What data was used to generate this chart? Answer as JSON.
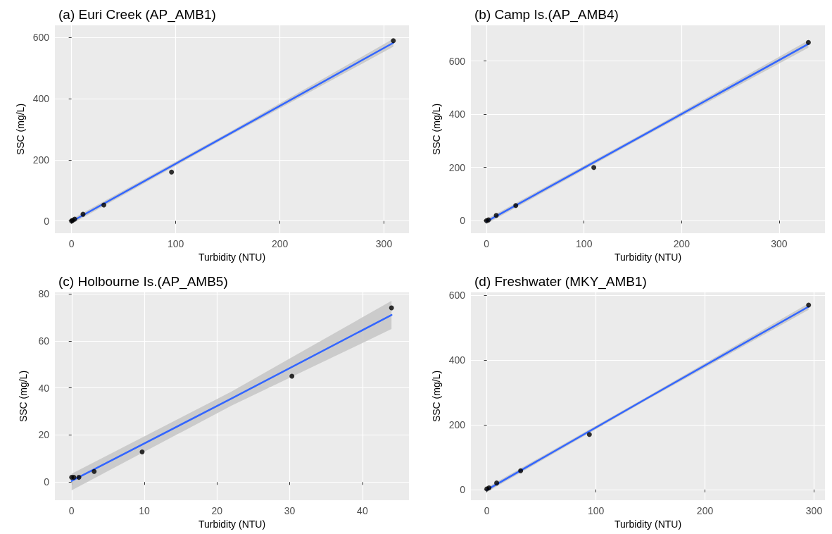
{
  "chart_data": [
    {
      "type": "scatter",
      "title": "(a) Euri Creek (AP_AMB1)",
      "xlabel": "Turbidity (NTU)",
      "ylabel": "SSC (mg/L)",
      "xlim": [
        -16,
        324
      ],
      "ylim": [
        -40,
        640
      ],
      "xticks": [
        0,
        100,
        200,
        300
      ],
      "yticks": [
        0,
        200,
        400,
        600
      ],
      "grid": true,
      "marker": "circle",
      "series": [
        {
          "color": "#000000",
          "x": [
            0,
            1,
            3,
            11,
            31,
            96,
            309
          ],
          "values": [
            0,
            2,
            6,
            22,
            52,
            160,
            590
          ]
        },
        {
          "type": "line",
          "color": "#3366ff",
          "line_style": "solid",
          "marker": "none",
          "x": [
            0,
            150,
            309
          ],
          "values": [
            -2,
            282,
            583
          ],
          "lower": [
            -10,
            276,
            570
          ],
          "upper": [
            6,
            288,
            596
          ]
        }
      ]
    },
    {
      "type": "scatter",
      "title": "(b) Camp Is.(AP_AMB4)",
      "xlabel": "Turbidity (NTU)",
      "ylabel": "SSC (mg/L)",
      "xlim": [
        -16,
        347
      ],
      "ylim": [
        -47,
        734
      ],
      "xticks": [
        0,
        100,
        200,
        300
      ],
      "yticks": [
        0,
        200,
        400,
        600
      ],
      "grid": true,
      "marker": "circle",
      "series": [
        {
          "color": "#000000",
          "x": [
            0,
            2,
            10,
            30,
            110,
            330
          ],
          "values": [
            0,
            3,
            20,
            57,
            200,
            670
          ]
        },
        {
          "type": "line",
          "color": "#3366ff",
          "line_style": "solid",
          "marker": "none",
          "x": [
            0,
            165,
            330
          ],
          "values": [
            -3,
            330,
            664
          ],
          "lower": [
            -12,
            323,
            650
          ],
          "upper": [
            6,
            337,
            678
          ]
        }
      ]
    },
    {
      "type": "scatter",
      "title": "(c) Holbourne Is.(AP_AMB5)",
      "xlabel": "Turbidity (NTU)",
      "ylabel": "SSC (mg/L)",
      "xlim": [
        -2.3,
        46.4
      ],
      "ylim": [
        -7.7,
        80.6
      ],
      "xticks": [
        0,
        10,
        20,
        30,
        40
      ],
      "yticks": [
        0,
        20,
        40,
        60,
        80
      ],
      "grid": true,
      "marker": "circle",
      "series": [
        {
          "color": "#000000",
          "x": [
            0,
            0.3,
            1,
            3.1,
            9.7,
            30.3,
            44
          ],
          "values": [
            2,
            2,
            2,
            4.5,
            12.8,
            45,
            74
          ]
        },
        {
          "type": "line",
          "color": "#3366ff",
          "line_style": "solid",
          "marker": "none",
          "x": [
            0,
            22,
            44
          ],
          "values": [
            0.5,
            35.5,
            71
          ],
          "lower": [
            -3.5,
            32.5,
            65
          ],
          "upper": [
            3.5,
            38.5,
            77
          ]
        }
      ]
    },
    {
      "type": "scatter",
      "title": "(d) Freshwater (MKY_AMB1)",
      "xlabel": "Turbidity (NTU)",
      "ylabel": "SSC (mg/L)",
      "xlim": [
        -14.6,
        310
      ],
      "ylim": [
        -33,
        609
      ],
      "xticks": [
        0,
        100,
        200,
        300
      ],
      "yticks": [
        0,
        200,
        400,
        600
      ],
      "grid": true,
      "marker": "circle",
      "series": [
        {
          "color": "#000000",
          "x": [
            0,
            2,
            9,
            31,
            94,
            295
          ],
          "values": [
            2,
            5,
            20,
            58,
            170,
            570
          ]
        },
        {
          "type": "line",
          "color": "#3366ff",
          "line_style": "solid",
          "marker": "none",
          "x": [
            0,
            147,
            295
          ],
          "values": [
            -1,
            282,
            565
          ],
          "lower": [
            -8,
            277,
            555
          ],
          "upper": [
            6,
            287,
            575
          ]
        }
      ]
    }
  ]
}
